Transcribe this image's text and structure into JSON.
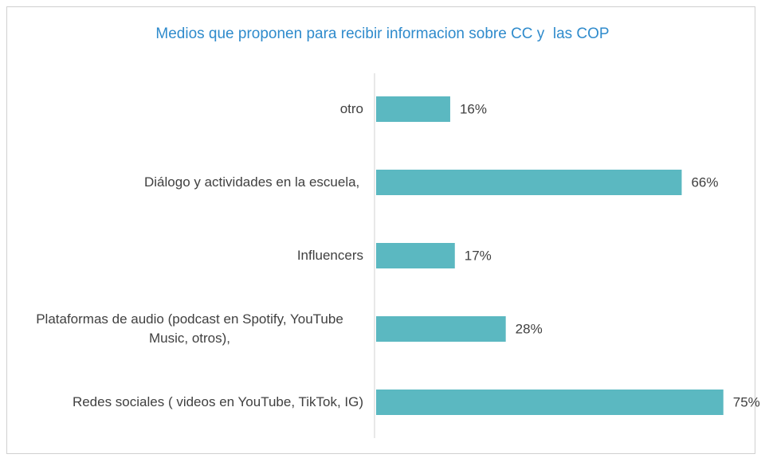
{
  "chart_data": {
    "type": "bar",
    "orientation": "horizontal",
    "title": "Medios que proponen para recibir informacion sobre CC y  las COP",
    "categories": [
      "otro",
      "Diálogo y actividades en la escuela, ",
      "Influencers",
      "Plataformas de audio (podcast en Spotify, YouTube Music, otros),",
      "Redes sociales ( videos en YouTube, TikTok, IG)"
    ],
    "values": [
      16,
      66,
      17,
      28,
      75
    ],
    "value_labels": [
      "16%",
      "66%",
      "17%",
      "28%",
      "75%"
    ],
    "color": "#5bb8c1"
  }
}
